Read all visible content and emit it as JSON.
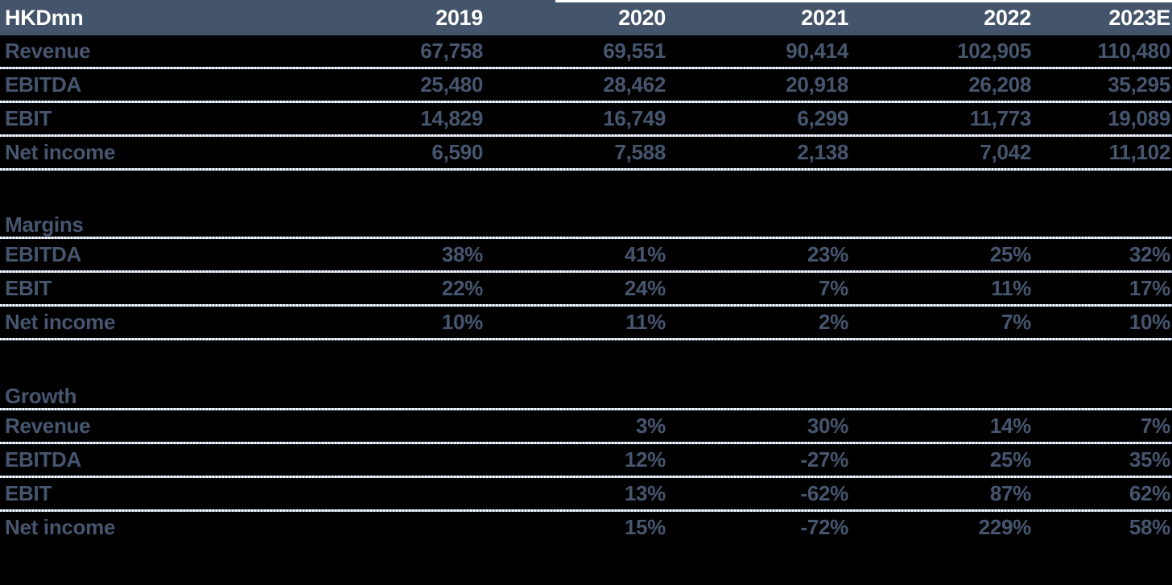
{
  "colors": {
    "header_bg": "#44546A",
    "header_text": "#FFFFFF",
    "body_bg": "#000000",
    "body_text": "#46566F",
    "separator": "#B3C1DA"
  },
  "chart_data": {
    "type": "table",
    "title": "HKDmn",
    "unit_label": "HKDmn",
    "columns": [
      "2019",
      "2020",
      "2021",
      "2022",
      "2023E"
    ],
    "sections": [
      {
        "title": "",
        "rows": [
          {
            "label": "Revenue",
            "values": [
              "67,758",
              "69,551",
              "90,414",
              "102,905",
              "110,480"
            ]
          },
          {
            "label": "EBITDA",
            "values": [
              "25,480",
              "28,462",
              "20,918",
              "26,208",
              "35,295"
            ]
          },
          {
            "label": "EBIT",
            "values": [
              "14,829",
              "16,749",
              "6,299",
              "11,773",
              "19,089"
            ]
          },
          {
            "label": "Net income",
            "values": [
              "6,590",
              "7,588",
              "2,138",
              "7,042",
              "11,102"
            ]
          }
        ]
      },
      {
        "title": "Margins",
        "rows": [
          {
            "label": "EBITDA",
            "values": [
              "38%",
              "41%",
              "23%",
              "25%",
              "32%"
            ]
          },
          {
            "label": "EBIT",
            "values": [
              "22%",
              "24%",
              "7%",
              "11%",
              "17%"
            ]
          },
          {
            "label": "Net income",
            "values": [
              "10%",
              "11%",
              "2%",
              "7%",
              "10%"
            ]
          }
        ]
      },
      {
        "title": "Growth",
        "rows": [
          {
            "label": "Revenue",
            "values": [
              "",
              "3%",
              "30%",
              "14%",
              "7%"
            ]
          },
          {
            "label": "EBITDA",
            "values": [
              "",
              "12%",
              "-27%",
              "25%",
              "35%"
            ]
          },
          {
            "label": "EBIT",
            "values": [
              "",
              "13%",
              "-62%",
              "87%",
              "62%"
            ]
          },
          {
            "label": "Net income",
            "values": [
              "",
              "15%",
              "-72%",
              "229%",
              "58%"
            ]
          }
        ]
      }
    ]
  }
}
